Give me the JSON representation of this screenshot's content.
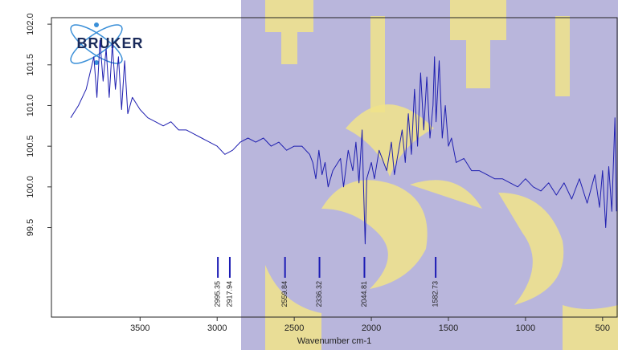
{
  "chart_data": {
    "type": "line",
    "logo": "BRUKER",
    "x_label": "Wavenumber cm-1",
    "xlim": [
      4075,
      400
    ],
    "ylim": [
      98.4,
      102.08
    ],
    "xticks": [
      3500,
      3000,
      2500,
      2000,
      1500,
      1000,
      500
    ],
    "yticks": [
      {
        "value": 102.0,
        "label": "102.0"
      },
      {
        "value": 101.5,
        "label": "101.5"
      },
      {
        "value": 101.0,
        "label": "101.0"
      },
      {
        "value": 100.5,
        "label": "100.5"
      },
      {
        "value": 100.0,
        "label": "100.0"
      },
      {
        "value": 99.5,
        "label": "99.5"
      }
    ],
    "peaks": [
      2995.35,
      2917.94,
      2559.84,
      2336.32,
      2044.81,
      1582.73
    ],
    "peak_color": "#1a1ab4",
    "x": [
      3950,
      3900,
      3850,
      3800,
      3780,
      3760,
      3740,
      3720,
      3700,
      3680,
      3660,
      3640,
      3620,
      3600,
      3580,
      3550,
      3500,
      3450,
      3400,
      3350,
      3300,
      3250,
      3200,
      3150,
      3100,
      3050,
      3000,
      2950,
      2900,
      2850,
      2800,
      2750,
      2700,
      2650,
      2600,
      2550,
      2500,
      2450,
      2400,
      2380,
      2360,
      2340,
      2320,
      2300,
      2280,
      2250,
      2200,
      2180,
      2150,
      2120,
      2100,
      2080,
      2060,
      2050,
      2040,
      2030,
      2000,
      1980,
      1950,
      1900,
      1870,
      1850,
      1800,
      1780,
      1760,
      1740,
      1720,
      1700,
      1680,
      1660,
      1640,
      1620,
      1600,
      1590,
      1580,
      1560,
      1540,
      1520,
      1500,
      1480,
      1450,
      1400,
      1350,
      1300,
      1250,
      1200,
      1150,
      1100,
      1050,
      1000,
      950,
      900,
      850,
      800,
      750,
      700,
      650,
      600,
      550,
      520,
      500,
      480,
      460,
      440,
      420,
      410
    ],
    "series": [
      {
        "color": "#1f1fb0",
        "values": [
          100.85,
          101.0,
          101.2,
          101.6,
          101.1,
          101.8,
          101.3,
          101.7,
          101.1,
          101.75,
          101.2,
          101.6,
          100.95,
          101.55,
          100.9,
          101.1,
          100.95,
          100.85,
          100.8,
          100.75,
          100.8,
          100.7,
          100.7,
          100.65,
          100.6,
          100.55,
          100.5,
          100.4,
          100.45,
          100.55,
          100.6,
          100.55,
          100.6,
          100.5,
          100.55,
          100.45,
          100.5,
          100.5,
          100.4,
          100.3,
          100.1,
          100.45,
          100.15,
          100.3,
          100.0,
          100.2,
          100.35,
          100.0,
          100.45,
          100.2,
          100.55,
          100.05,
          100.7,
          99.95,
          99.3,
          100.1,
          100.3,
          100.1,
          100.45,
          100.2,
          100.55,
          100.15,
          100.7,
          100.3,
          100.9,
          100.4,
          101.2,
          100.5,
          101.4,
          100.7,
          101.35,
          100.6,
          101.0,
          101.6,
          100.8,
          101.55,
          100.6,
          101.0,
          100.5,
          100.6,
          100.3,
          100.35,
          100.2,
          100.2,
          100.15,
          100.1,
          100.1,
          100.05,
          100.0,
          100.1,
          100.0,
          99.95,
          100.05,
          99.9,
          100.05,
          99.85,
          100.1,
          99.8,
          100.15,
          99.75,
          100.2,
          99.5,
          100.25,
          99.7,
          100.85,
          99.7
        ]
      }
    ]
  }
}
